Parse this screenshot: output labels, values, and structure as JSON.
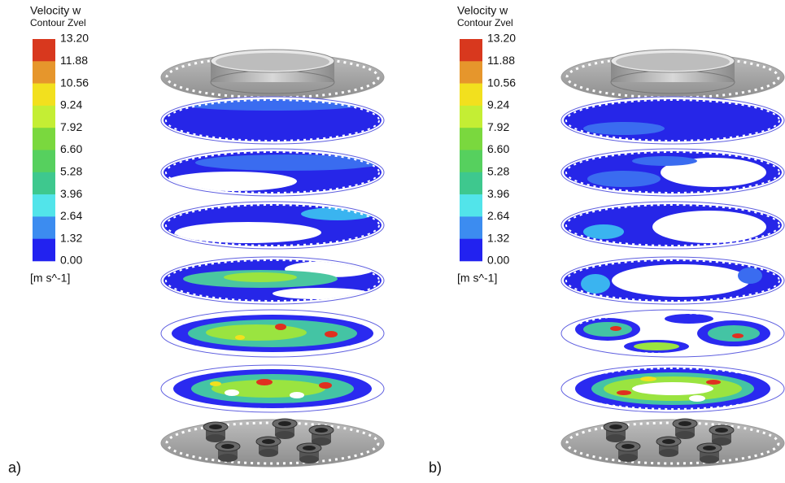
{
  "panels": [
    {
      "label": "a)",
      "legend": {
        "title": "Velocity w",
        "subtitle": "Contour Zvel",
        "ticks": [
          "13.20",
          "11.88",
          "10.56",
          "9.24",
          "7.92",
          "6.60",
          "5.28",
          "3.96",
          "2.64",
          "1.32",
          "0.00"
        ],
        "unit": "[m s^-1]"
      }
    },
    {
      "label": "b)",
      "legend": {
        "title": "Velocity w",
        "subtitle": "Contour Zvel",
        "ticks": [
          "13.20",
          "11.88",
          "10.56",
          "9.24",
          "7.92",
          "6.60",
          "5.28",
          "3.96",
          "2.64",
          "1.32",
          "0.00"
        ],
        "unit": "[m s^-1]"
      }
    }
  ]
}
